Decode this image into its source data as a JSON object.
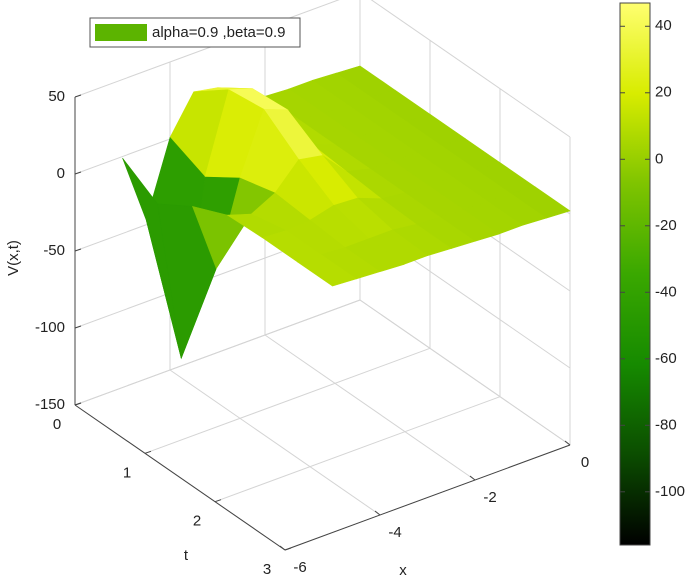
{
  "chart_data": {
    "type": "surface",
    "xlabel": "x",
    "ylabel": "t",
    "zlabel": "V(x,t)",
    "x": [
      -5,
      -4.5,
      -4,
      -3.5,
      -3,
      -2.5,
      -2,
      -1.5,
      -1,
      -0.5,
      0
    ],
    "t": [
      0,
      0.5,
      1,
      1.5,
      2,
      2.5,
      3
    ],
    "z": [
      [
        -1,
        -47,
        1,
        25,
        22,
        8,
        5,
        4,
        4,
        3,
        2
      ],
      [
        -15,
        -121,
        -9,
        42,
        37,
        11,
        5,
        4,
        4,
        3,
        2
      ],
      [
        -1,
        -47,
        6,
        45,
        39,
        11,
        5,
        4,
        4,
        3,
        2
      ],
      [
        9,
        4,
        12,
        28,
        25,
        9,
        5,
        4,
        4,
        3,
        2
      ],
      [
        10,
        9,
        10,
        14,
        13,
        7,
        5,
        4,
        4,
        3,
        2
      ],
      [
        10,
        9,
        8,
        8,
        8,
        6,
        5,
        4,
        4,
        3,
        2
      ],
      [
        10,
        9,
        8,
        7,
        7,
        6,
        5,
        4,
        4,
        3,
        2
      ]
    ],
    "xlim": [
      -6,
      0
    ],
    "xticks": [
      -6,
      -4,
      -2,
      0
    ],
    "ylim": [
      0,
      3
    ],
    "yticks": [
      0,
      1,
      2,
      3
    ],
    "zlim": [
      -150,
      50
    ],
    "zticks": [
      -150,
      -100,
      -50,
      0,
      50
    ],
    "grid": true,
    "legend": {
      "label": "alpha=0.9 ,beta=0.9",
      "color": "#5cb400",
      "corner": "upper left"
    },
    "colorbar": {
      "clim": [
        -116,
        47
      ],
      "ticks": [
        -100,
        -80,
        -60,
        -40,
        -20,
        0,
        20,
        40
      ],
      "colormap": [
        "#000000",
        "#0b4d00",
        "#168a00",
        "#3aa800",
        "#7fc400",
        "#d8ec00",
        "#ffff70"
      ]
    }
  }
}
